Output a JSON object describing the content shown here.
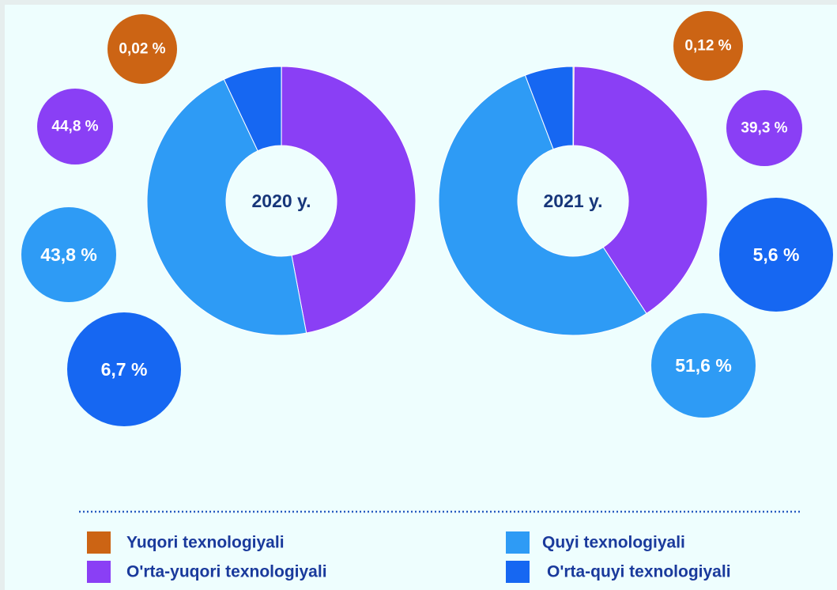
{
  "chart_data": {
    "type": "donut",
    "categories": [
      "Yuqori texnologiyali",
      "O'rta-yuqori texnologiyali",
      "Quyi texnologiyali",
      "O'rta-quyi texnologiyali"
    ],
    "colors": [
      "#cc6414",
      "#8a3ff5",
      "#2e9bf5",
      "#1667f2"
    ],
    "series": [
      {
        "name": "2020 y.",
        "values": [
          0.02,
          44.8,
          43.8,
          6.7
        ],
        "value_labels": [
          "0,02 %",
          "44,8 %",
          "43,8 %",
          "6,7 %"
        ]
      },
      {
        "name": "2021 y.",
        "values": [
          0.12,
          39.3,
          51.6,
          5.6
        ],
        "value_labels": [
          "0,12 %",
          "39,3 %",
          "51,6 %",
          "5,6 %"
        ]
      }
    ]
  }
}
